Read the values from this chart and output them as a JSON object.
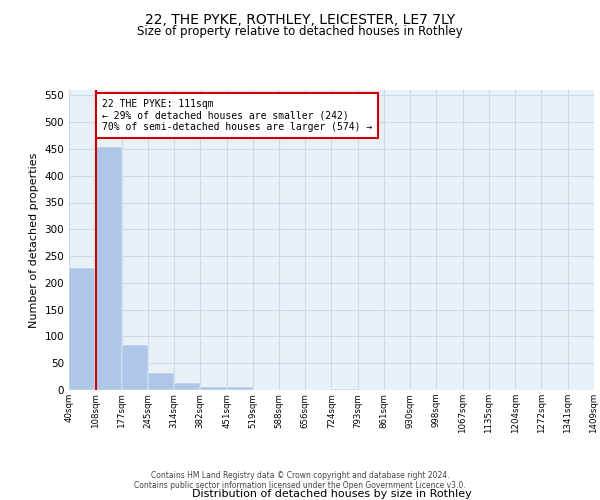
{
  "title": "22, THE PYKE, ROTHLEY, LEICESTER, LE7 7LY",
  "subtitle": "Size of property relative to detached houses in Rothley",
  "xlabel": "Distribution of detached houses by size in Rothley",
  "ylabel": "Number of detached properties",
  "bar_edges": [
    40,
    108,
    177,
    245,
    314,
    382,
    451,
    519,
    588,
    656,
    724,
    793,
    861,
    930,
    998,
    1067,
    1135,
    1204,
    1272,
    1341,
    1409
  ],
  "bar_heights": [
    228,
    453,
    84,
    32,
    13,
    6,
    5,
    0,
    0,
    0,
    1,
    0,
    0,
    0,
    0,
    0,
    0,
    0,
    0,
    0,
    1
  ],
  "bar_color": "#aec6e8",
  "bar_edgecolor": "#aec6e8",
  "property_line_x": 111,
  "property_line_color": "#cc0000",
  "annotation_text": "22 THE PYKE: 111sqm\n← 29% of detached houses are smaller (242)\n70% of semi-detached houses are larger (574) →",
  "annotation_box_color": "#ffffff",
  "annotation_box_edgecolor": "#cc0000",
  "ylim": [
    0,
    560
  ],
  "yticks": [
    0,
    50,
    100,
    150,
    200,
    250,
    300,
    350,
    400,
    450,
    500,
    550
  ],
  "tick_labels": [
    "40sqm",
    "108sqm",
    "177sqm",
    "245sqm",
    "314sqm",
    "382sqm",
    "451sqm",
    "519sqm",
    "588sqm",
    "656sqm",
    "724sqm",
    "793sqm",
    "861sqm",
    "930sqm",
    "998sqm",
    "1067sqm",
    "1135sqm",
    "1204sqm",
    "1272sqm",
    "1341sqm",
    "1409sqm"
  ],
  "grid_color": "#ccd9e8",
  "bg_color": "#e8f0f8",
  "footer_line1": "Contains HM Land Registry data © Crown copyright and database right 2024.",
  "footer_line2": "Contains public sector information licensed under the Open Government Licence v3.0."
}
